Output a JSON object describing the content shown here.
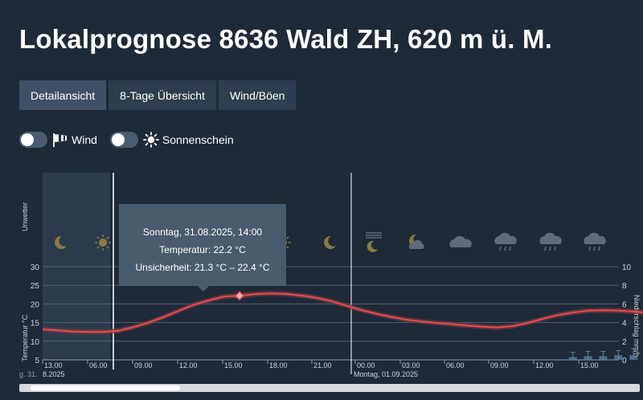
{
  "page": {
    "title": "Lokalprognose 8636 Wald ZH, 620 m ü. M."
  },
  "tabs": [
    {
      "label": "Detailansicht",
      "active": true
    },
    {
      "label": "8-Tage Übersicht",
      "active": false
    },
    {
      "label": "Wind/Böen",
      "active": false
    }
  ],
  "toggles": [
    {
      "label": "Wind",
      "icon": "windsock-icon",
      "on": false
    },
    {
      "label": "Sonnenschein",
      "icon": "sun-icon",
      "on": false
    }
  ],
  "tooltip": {
    "date": "Sonntag, 31.08.2025, 14:00",
    "temperature": "Temperatur: 22.2 °C",
    "uncertainty": "Unsicherheit: 21.3 °C – 22.4 °C"
  },
  "colors": {
    "background": "#1e2a38",
    "temperature_line": "#e74c4c",
    "uncertainty_band": "#7a3a44",
    "precip_bar": "#5a7a9a"
  },
  "chart_data": {
    "type": "line",
    "left_axis_label": "Temperatur °C",
    "right_axis_label": "Niederschlag mm/h",
    "top_band_label": "Unwetter",
    "y_ticks": [
      "30",
      "25",
      "20",
      "15",
      "10",
      "5"
    ],
    "y2_ticks": [
      "10",
      "8",
      "6",
      "4",
      "2",
      "0"
    ],
    "ylim": [
      5,
      30
    ],
    "y2lim": [
      0,
      10
    ],
    "x_ticks": [
      "13.00",
      "06.00",
      "09.00",
      "12.00",
      "15.00",
      "18.00",
      "21.00",
      "00.00",
      "03.00",
      "06.00",
      "09.00",
      "12.00",
      "15.00"
    ],
    "date_labels": [
      "g. 31.",
      "8.2025",
      "Montag, 01.09.2025"
    ],
    "weather_icons": [
      "moon-icon",
      "sun-icon",
      "sun-icon",
      "moon-icon",
      "moon-fog-icon",
      "moon-cloud-icon",
      "cloud-icon",
      "cloud-rain-icon",
      "cloud-rain-icon",
      "cloud-rain-icon"
    ],
    "series": [
      {
        "x_hours": [
          0,
          1,
          2,
          3,
          4,
          5,
          6,
          7,
          8,
          9,
          10,
          11,
          12,
          13,
          14,
          15,
          16,
          17,
          18,
          19,
          20,
          21,
          22,
          23,
          24,
          25,
          26,
          27,
          28,
          29,
          30,
          31,
          32,
          33,
          34,
          35,
          36,
          37,
          38,
          39,
          40,
          41,
          42
        ],
        "values": [
          13.2,
          12.9,
          12.6,
          12.5,
          12.5,
          12.8,
          13.8,
          15.0,
          16.5,
          18.2,
          19.8,
          21.0,
          22.0,
          22.2,
          22.6,
          22.8,
          22.7,
          22.3,
          21.7,
          20.8,
          19.6,
          18.4,
          17.4,
          16.5,
          15.8,
          15.3,
          14.9,
          14.6,
          14.2,
          13.9,
          13.7,
          14.0,
          14.9,
          16.0,
          17.0,
          17.7,
          18.2,
          18.3,
          18.2,
          18.0,
          17.6,
          17.0,
          16.3
        ]
      }
    ],
    "precipitation": {
      "x_hours": [
        35,
        36,
        37,
        38,
        39,
        40,
        41,
        42
      ],
      "values": [
        0.3,
        0.4,
        0.4,
        0.5,
        0.5,
        0.6,
        0.8,
        1.1
      ],
      "upper": [
        0.8,
        0.9,
        0.9,
        1.0,
        1.2,
        1.4,
        1.9,
        2.8
      ]
    }
  }
}
